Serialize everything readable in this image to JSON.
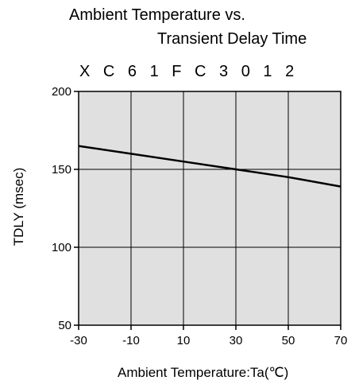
{
  "chart_data": {
    "type": "line",
    "title": "Ambient Temperature vs.",
    "subtitle": "Transient Delay Time",
    "part_number": "X C 6 1 F C 3 0 1 2",
    "xlabel": "Ambient Temperature:Ta(℃)",
    "ylabel": "TDLY (msec)",
    "xlim": [
      -30,
      70
    ],
    "ylim": [
      50,
      200
    ],
    "xticks": [
      "-30",
      "-10",
      "10",
      "30",
      "50",
      "70"
    ],
    "yticks": [
      "200",
      "150",
      "100",
      "50"
    ],
    "grid": true,
    "plot_background": "#e0e0e0",
    "line_color": "#000000",
    "x": [
      -30,
      -10,
      10,
      30,
      50,
      70
    ],
    "y": [
      165,
      160,
      155,
      150,
      145,
      139
    ]
  }
}
